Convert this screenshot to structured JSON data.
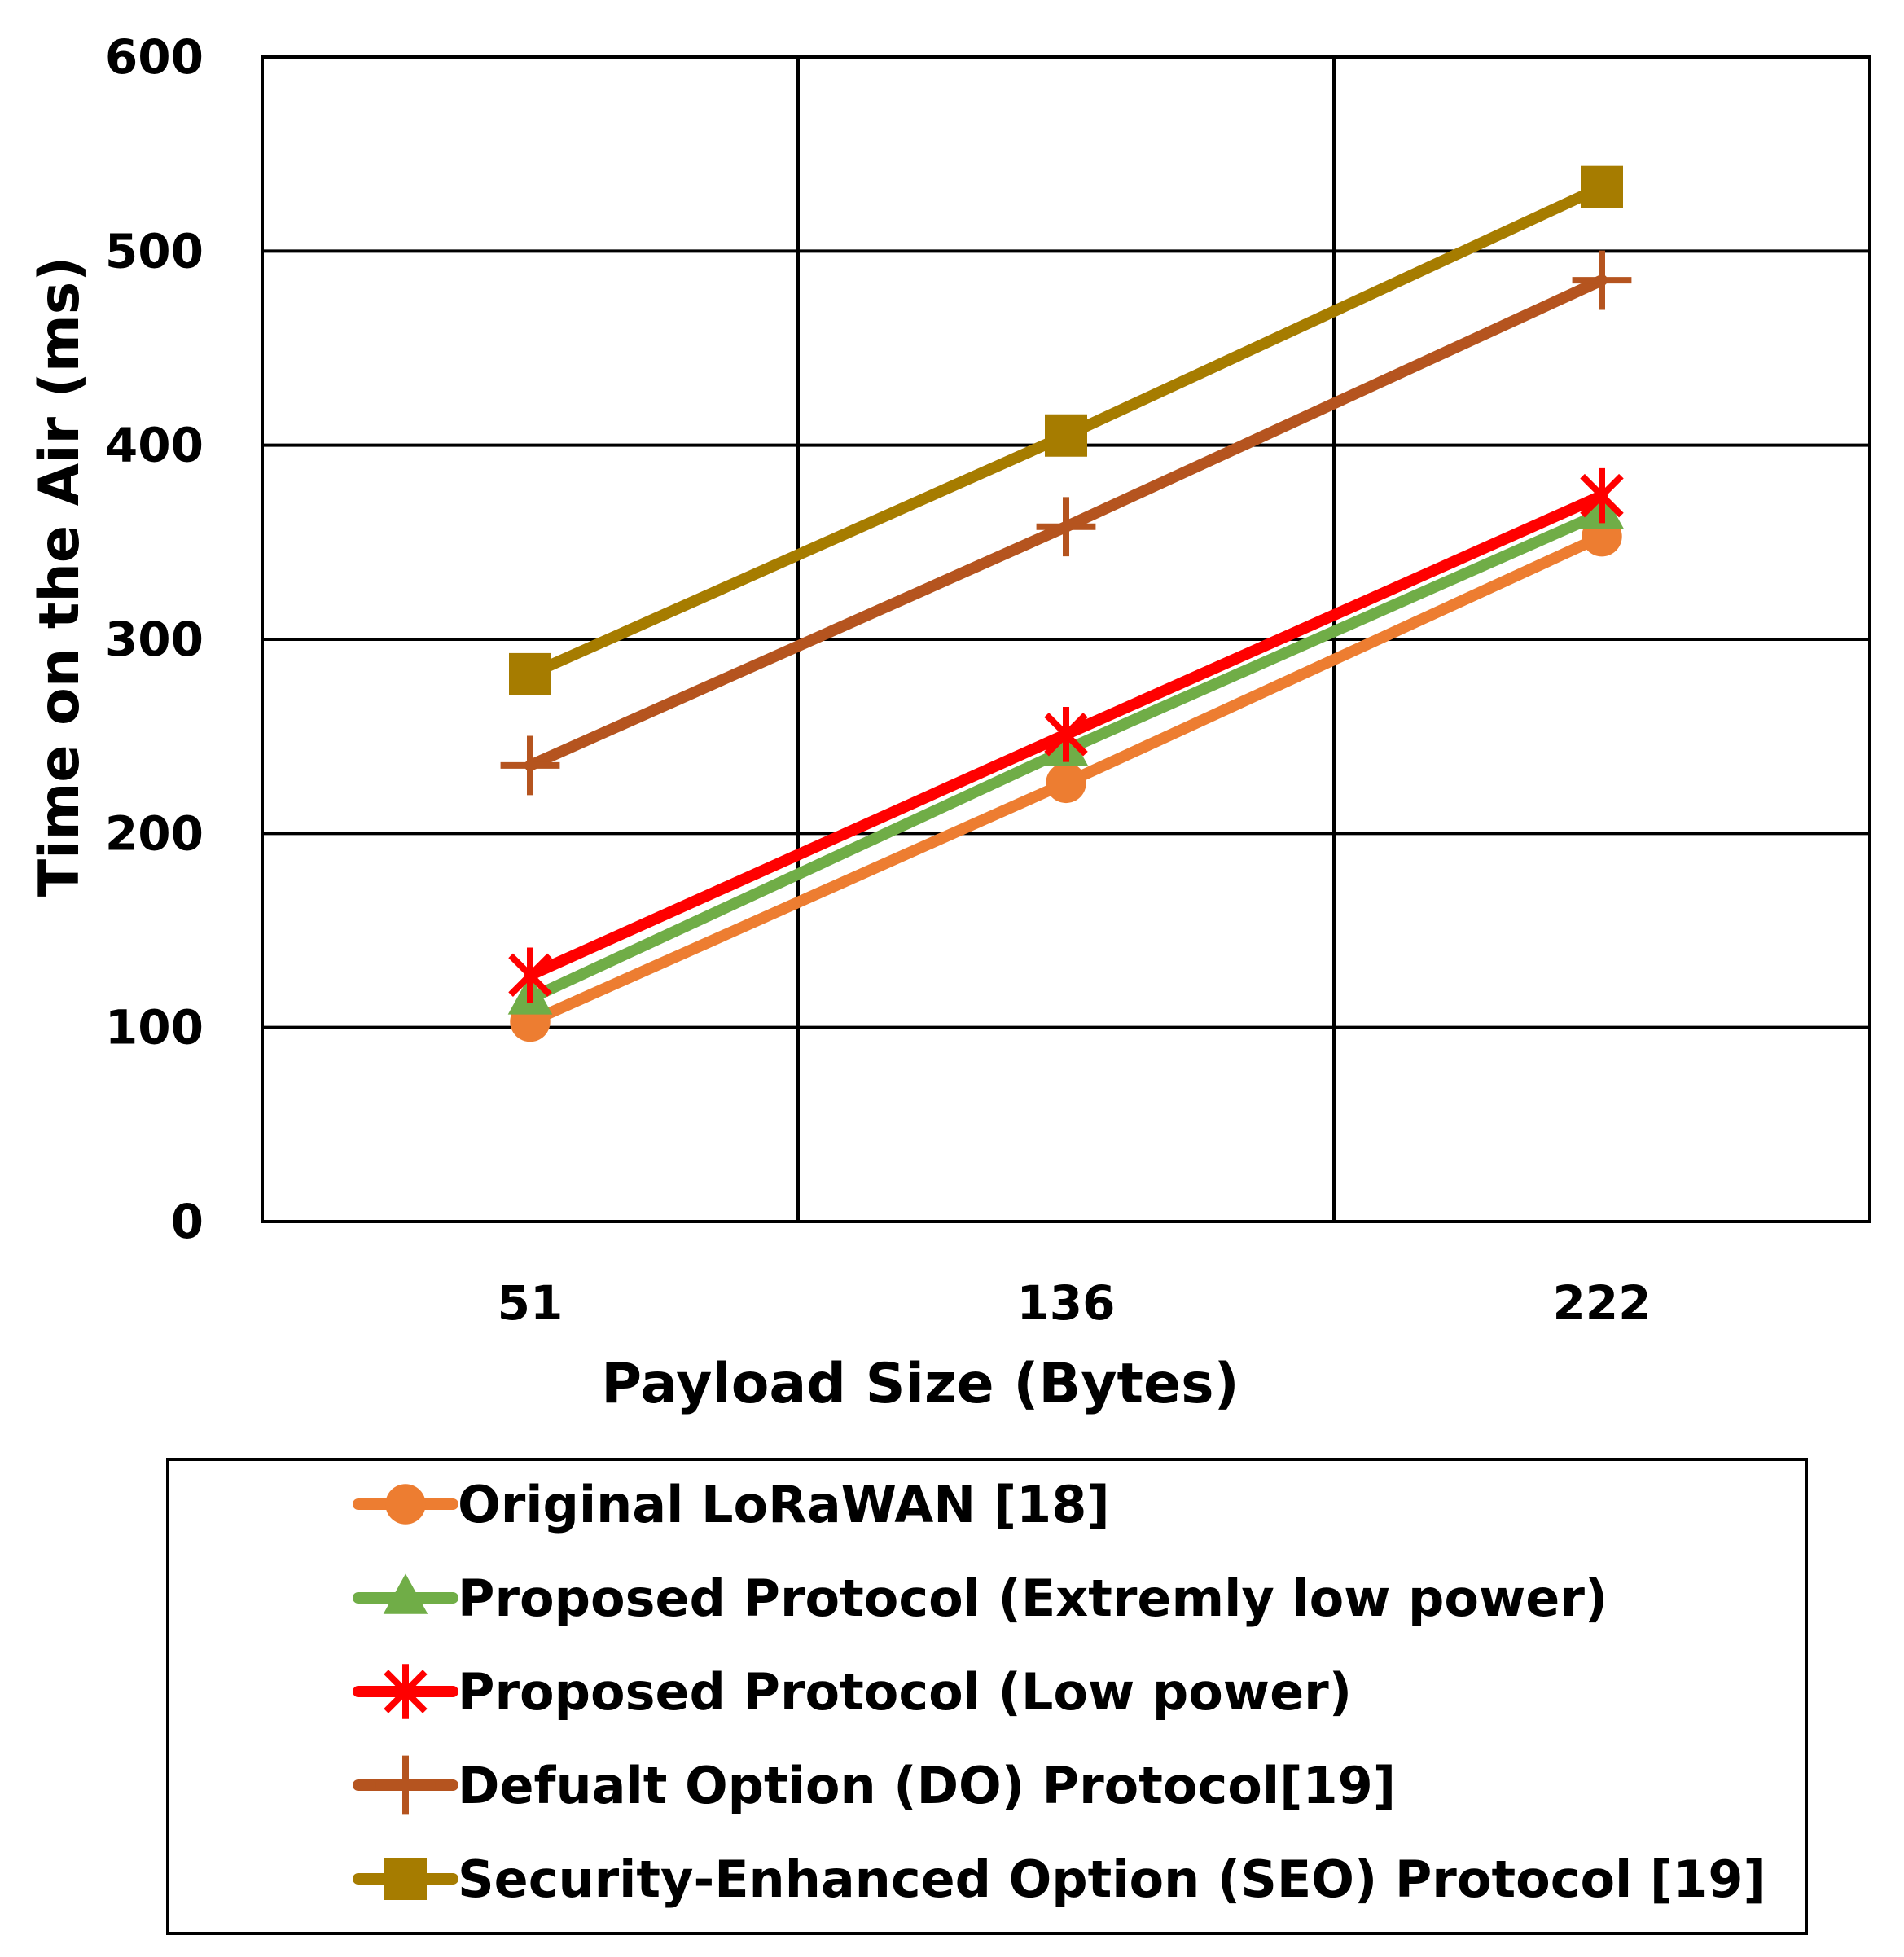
{
  "chart_data": {
    "type": "line",
    "title": "",
    "xlabel": "Payload Size (Bytes)",
    "ylabel": "Time on the Air (ms)",
    "categories": [
      "51",
      "136",
      "222"
    ],
    "ylim": [
      0,
      600
    ],
    "yticks": [
      "0",
      "100",
      "200",
      "300",
      "400",
      "500",
      "600"
    ],
    "grid": true,
    "legend_position": "bottom",
    "series": [
      {
        "name": "Original LoRaWAN [18]",
        "values": [
          103,
          226,
          353
        ],
        "color": "#ED7D31",
        "marker": "circle"
      },
      {
        "name": "Proposed Protocol (Extremly low power)",
        "values": [
          115,
          243,
          365
        ],
        "color": "#70AD47",
        "marker": "triangle"
      },
      {
        "name": "Proposed Protocol (Low power)",
        "values": [
          127,
          251,
          374
        ],
        "color": "#FF0000",
        "marker": "star"
      },
      {
        "name": "Defualt Option (DO) Protocol[19]",
        "values": [
          235,
          358,
          485
        ],
        "color": "#B5541F",
        "marker": "plus"
      },
      {
        "name": "Security-Enhanced Option (SEO) Protocol [19]",
        "values": [
          282,
          405,
          533
        ],
        "color": "#A67C00",
        "marker": "square"
      }
    ]
  }
}
